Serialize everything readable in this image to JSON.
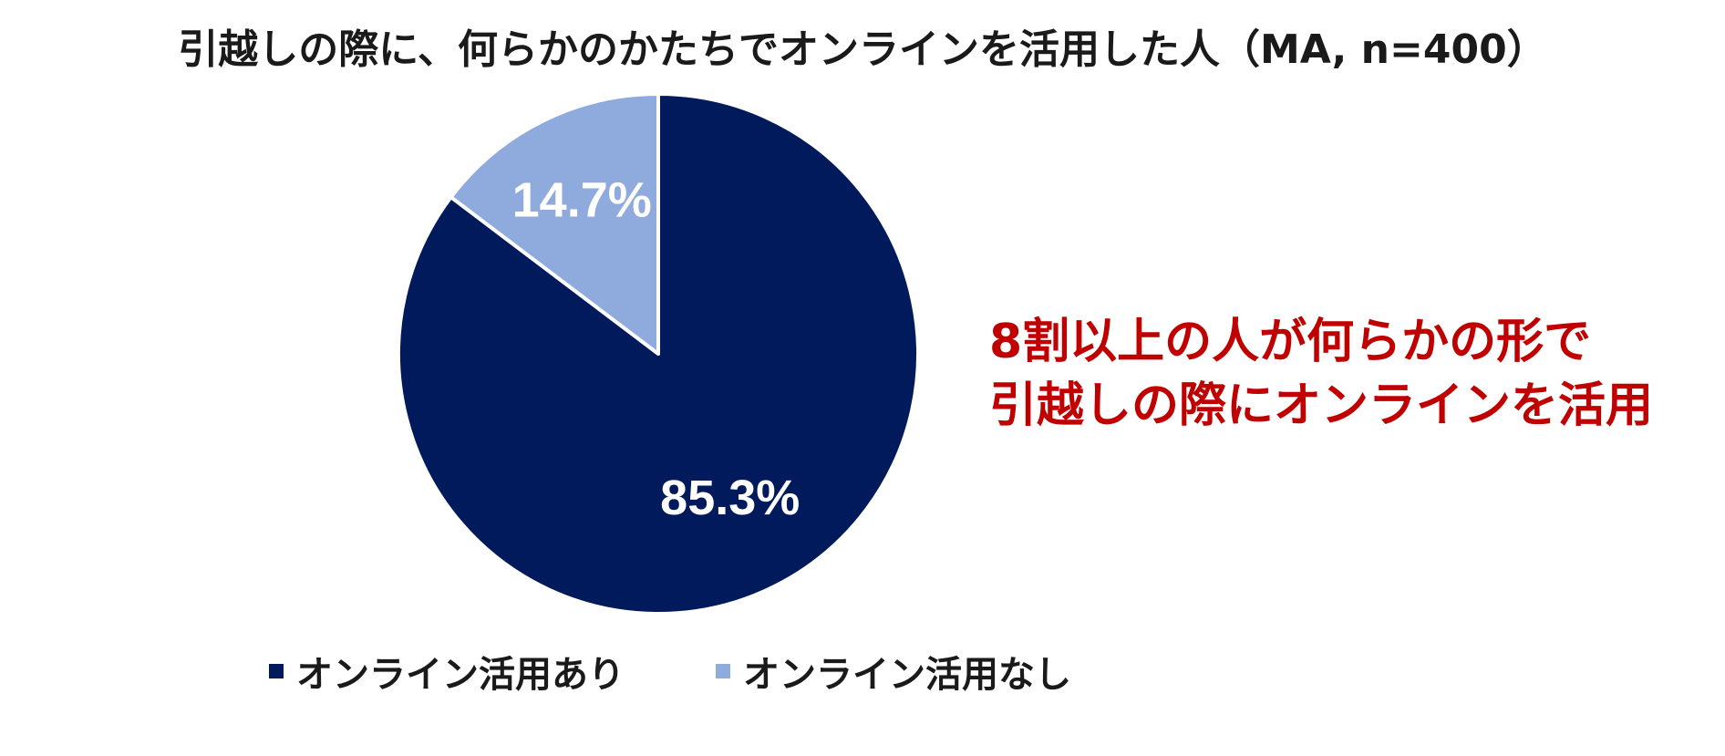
{
  "chart_data": {
    "type": "pie",
    "title": "引越しの際に、何らかのかたちでオンラインを活用した人（MA, n=400）",
    "slices": [
      {
        "name": "オンライン活用あり",
        "value": 85.3,
        "label": "85.3%",
        "color": "#001a5c"
      },
      {
        "name": "オンライン活用なし",
        "value": 14.7,
        "label": "14.7%",
        "color": "#8faadc"
      }
    ],
    "legend_placement": "bottom",
    "start_angle": "12 o'clock",
    "direction": "clockwise"
  },
  "annotation": {
    "line1": "8割以上の人が何らかの形で",
    "line2": "引越しの際にオンラインを活用",
    "color": "#c00000"
  }
}
